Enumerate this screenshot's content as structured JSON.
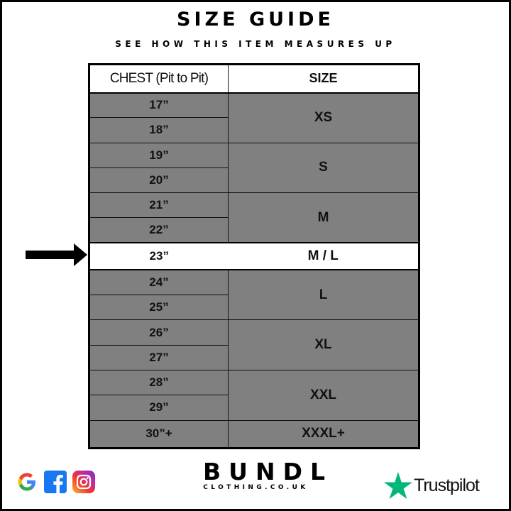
{
  "title": "SIZE GUIDE",
  "subtitle": "SEE HOW THIS ITEM MEASURES UP",
  "table": {
    "headers": [
      "CHEST (Pit to Pit)",
      "SIZE"
    ],
    "rows": [
      {
        "chest": "17”",
        "size": "XS"
      },
      {
        "chest": "18”"
      },
      {
        "chest": "19”",
        "size": "S"
      },
      {
        "chest": "20”"
      },
      {
        "chest": "21”",
        "size": "M"
      },
      {
        "chest": "22”"
      },
      {
        "chest": "23”",
        "size": "M / L"
      },
      {
        "chest": "24”",
        "size": "L"
      },
      {
        "chest": "25”"
      },
      {
        "chest": "26”",
        "size": "XL"
      },
      {
        "chest": "27”"
      },
      {
        "chest": "28”",
        "size": "XXL"
      },
      {
        "chest": "29”"
      },
      {
        "chest": "30”+",
        "size": "XXXL+"
      }
    ],
    "highlighted_row": "23”"
  },
  "footer": {
    "social_icons": [
      "google-icon",
      "facebook-icon",
      "instagram-icon"
    ],
    "brand": "BUNDL",
    "brand_sub": "CLOTHING.CO.UK",
    "trustpilot": "Trustpilot"
  },
  "colors": {
    "row_bg": "#808080",
    "highlight_bg": "#ffffff",
    "trustpilot_star": "#00b67a"
  }
}
